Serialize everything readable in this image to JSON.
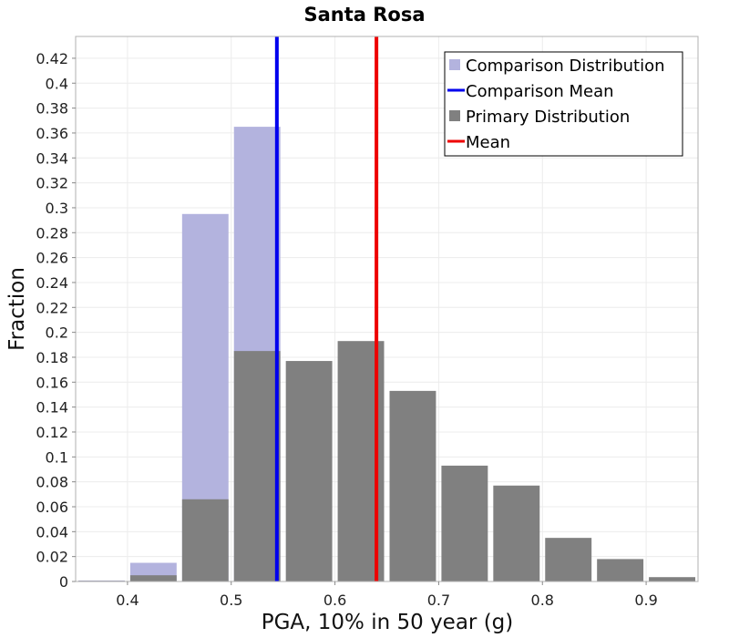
{
  "chart_data": {
    "type": "bar",
    "title": "Santa Rosa",
    "xlabel": "PGA, 10% in 50 year (g)",
    "ylabel": "Fraction",
    "xlim": [
      0.35,
      0.95
    ],
    "ylim": [
      0,
      0.4375
    ],
    "bin_width": 0.05,
    "grid": true,
    "legend_position": "top-right",
    "x_ticks": [
      {
        "value": 0.4,
        "label": "0.4"
      },
      {
        "value": 0.5,
        "label": "0.5"
      },
      {
        "value": 0.6,
        "label": "0.6"
      },
      {
        "value": 0.7,
        "label": "0.7"
      },
      {
        "value": 0.8,
        "label": "0.8"
      },
      {
        "value": 0.9,
        "label": "0.9"
      }
    ],
    "y_ticks": [
      {
        "value": 0,
        "label": "0"
      },
      {
        "value": 0.02,
        "label": "0.02"
      },
      {
        "value": 0.04,
        "label": "0.04"
      },
      {
        "value": 0.06,
        "label": "0.06"
      },
      {
        "value": 0.08,
        "label": "0.08"
      },
      {
        "value": 0.1,
        "label": "0.1"
      },
      {
        "value": 0.12,
        "label": "0.12"
      },
      {
        "value": 0.14,
        "label": "0.14"
      },
      {
        "value": 0.16,
        "label": "0.16"
      },
      {
        "value": 0.18,
        "label": "0.18"
      },
      {
        "value": 0.2,
        "label": "0.2"
      },
      {
        "value": 0.22,
        "label": "0.22"
      },
      {
        "value": 0.24,
        "label": "0.24"
      },
      {
        "value": 0.26,
        "label": "0.26"
      },
      {
        "value": 0.28,
        "label": "0.28"
      },
      {
        "value": 0.3,
        "label": "0.3"
      },
      {
        "value": 0.32,
        "label": "0.32"
      },
      {
        "value": 0.34,
        "label": "0.34"
      },
      {
        "value": 0.36,
        "label": "0.36"
      },
      {
        "value": 0.38,
        "label": "0.38"
      },
      {
        "value": 0.4,
        "label": "0.4"
      },
      {
        "value": 0.42,
        "label": "0.42"
      }
    ],
    "series": [
      {
        "name": "Comparison Distribution",
        "color": "#b3b3de",
        "kind": "bars",
        "bins": [
          {
            "x": 0.35,
            "value": 0.0008
          },
          {
            "x": 0.4,
            "value": 0.015
          },
          {
            "x": 0.45,
            "value": 0.295
          },
          {
            "x": 0.5,
            "value": 0.365
          }
        ]
      },
      {
        "name": "Primary Distribution",
        "color": "#808080",
        "kind": "bars",
        "bins": [
          {
            "x": 0.35,
            "value": 0.0005
          },
          {
            "x": 0.4,
            "value": 0.005
          },
          {
            "x": 0.45,
            "value": 0.066
          },
          {
            "x": 0.5,
            "value": 0.185
          },
          {
            "x": 0.55,
            "value": 0.177
          },
          {
            "x": 0.6,
            "value": 0.193
          },
          {
            "x": 0.65,
            "value": 0.153
          },
          {
            "x": 0.7,
            "value": 0.093
          },
          {
            "x": 0.75,
            "value": 0.077
          },
          {
            "x": 0.8,
            "value": 0.035
          },
          {
            "x": 0.85,
            "value": 0.018
          },
          {
            "x": 0.9,
            "value": 0.0035
          }
        ]
      }
    ],
    "mean_lines": [
      {
        "name": "Comparison Mean",
        "x": 0.544,
        "color": "#0000ee"
      },
      {
        "name": "Mean",
        "x": 0.64,
        "color": "#ee0000"
      }
    ],
    "legend": [
      {
        "label": "Comparison Distribution",
        "symbol": "square",
        "color": "#b3b3de"
      },
      {
        "label": "Comparison Mean",
        "symbol": "line",
        "color": "#0000ee"
      },
      {
        "label": "Primary Distribution",
        "symbol": "square",
        "color": "#808080"
      },
      {
        "label": "Mean",
        "symbol": "line",
        "color": "#ee0000"
      }
    ]
  }
}
